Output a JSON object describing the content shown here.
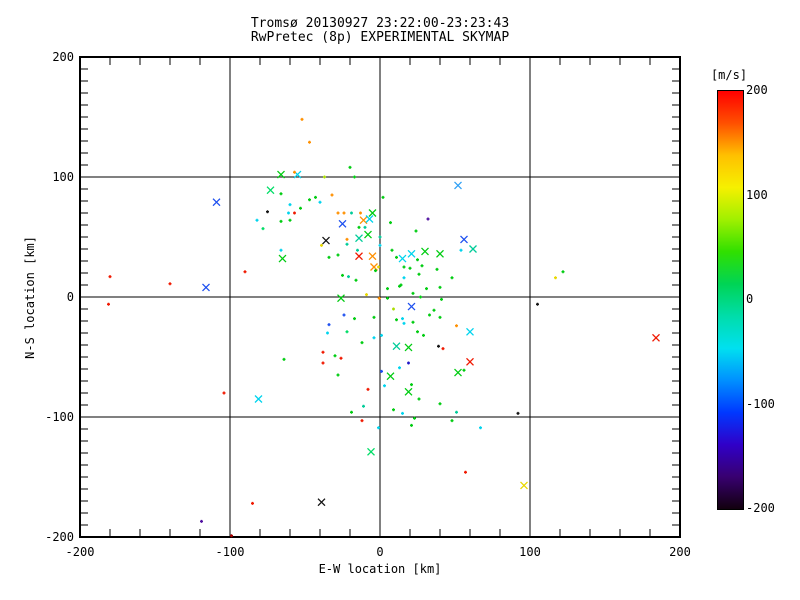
{
  "title": {
    "line1": "Tromsø 20130927 23:22:00-23:23:43",
    "line2": "RwPretec (8p) EXPERIMENTAL SKYMAP"
  },
  "axes": {
    "x": {
      "label": "E-W location [km]",
      "range": [
        -200,
        200
      ],
      "major_ticks": [
        -200,
        -100,
        0,
        100,
        200
      ],
      "minor_step": 20,
      "grid": true
    },
    "y": {
      "label": "N-S location [km]",
      "range": [
        -200,
        200
      ],
      "major_ticks": [
        200,
        100,
        0,
        -100,
        -200
      ],
      "minor_step": 10,
      "grid": true
    }
  },
  "colorbar": {
    "label": "[m/s]",
    "range": [
      -200,
      200
    ],
    "ticks": [
      200,
      100,
      0,
      -100,
      -200
    ],
    "gradient": [
      "#ff0000",
      "#ff5000",
      "#ffc000",
      "#f6f000",
      "#a0f000",
      "#30e000",
      "#00d455",
      "#00ddaa",
      "#00e0f0",
      "#0090ff",
      "#0038ff",
      "#3000c8",
      "#380070",
      "#12000e"
    ]
  },
  "palette": {
    "red": "#f01800",
    "darkred": "#a80000",
    "orange": "#ff9000",
    "yellow": "#e8d800",
    "yellowgreen": "#aadd00",
    "green": "#00cc11",
    "spring": "#00dd66",
    "teal": "#00cc99",
    "cyan": "#00d4ee",
    "lightblue": "#30a0f5",
    "blue": "#1e50f0",
    "darkblue": "#2018c8",
    "indigo": "#5010a0",
    "purple": "#400880",
    "black": "#141414"
  },
  "chart_data": {
    "type": "scatter",
    "title": "Tromsø 20130927 23:22:00-23:23:43 / RwPretec (8p) EXPERIMENTAL SKYMAP",
    "xlabel": "E-W location [km]",
    "ylabel": "N-S location [km]",
    "xlim": [
      -200,
      200
    ],
    "ylim": [
      -200,
      200
    ],
    "color_units": "m/s",
    "color_range": [
      -200,
      200
    ],
    "legend": "none",
    "grid": "major",
    "marker_types": {
      "x": "diagonal-cross",
      "d": "small-dot"
    },
    "points": [
      [
        -52,
        148,
        "orange",
        "d"
      ],
      [
        -47,
        129,
        "orange",
        "d"
      ],
      [
        -66,
        102,
        "green",
        "x"
      ],
      [
        -55,
        102,
        "cyan",
        "x"
      ],
      [
        -57,
        104,
        "orange",
        "d"
      ],
      [
        -37,
        100,
        "yellowgreen",
        "d"
      ],
      [
        -20,
        108,
        "green",
        "d"
      ],
      [
        -17,
        100,
        "green",
        "d"
      ],
      [
        -109,
        79,
        "blue",
        "x"
      ],
      [
        -73,
        89,
        "spring",
        "x"
      ],
      [
        -75,
        71,
        "black",
        "d"
      ],
      [
        -82,
        64,
        "cyan",
        "d"
      ],
      [
        -78,
        57,
        "spring",
        "d"
      ],
      [
        52,
        93,
        "lightblue",
        "x"
      ],
      [
        2,
        83,
        "green",
        "d"
      ],
      [
        -66,
        86,
        "green",
        "d"
      ],
      [
        -60,
        77,
        "cyan",
        "d"
      ],
      [
        -47,
        81,
        "green",
        "d"
      ],
      [
        -43,
        83,
        "green",
        "d"
      ],
      [
        -40,
        79,
        "cyan",
        "d"
      ],
      [
        -32,
        85,
        "orange",
        "d"
      ],
      [
        -61,
        70,
        "cyan",
        "d"
      ],
      [
        -57,
        70,
        "red",
        "d"
      ],
      [
        -53,
        74,
        "green",
        "d"
      ],
      [
        -66,
        63,
        "green",
        "d"
      ],
      [
        -60,
        64,
        "green",
        "d"
      ],
      [
        -28,
        70,
        "orange",
        "d"
      ],
      [
        -24,
        70,
        "orange",
        "d"
      ],
      [
        -19,
        70,
        "teal",
        "d"
      ],
      [
        -25,
        61,
        "blue",
        "x"
      ],
      [
        -11,
        64,
        "orange",
        "x"
      ],
      [
        -7,
        65,
        "cyan",
        "x"
      ],
      [
        -5,
        70,
        "green",
        "x"
      ],
      [
        -13,
        70,
        "orange",
        "d"
      ],
      [
        32,
        65,
        "indigo",
        "d"
      ],
      [
        7,
        62,
        "green",
        "d"
      ],
      [
        -14,
        58,
        "green",
        "d"
      ],
      [
        -10,
        58,
        "teal",
        "d"
      ],
      [
        -8,
        52,
        "green",
        "x"
      ],
      [
        -14,
        49,
        "teal",
        "x"
      ],
      [
        24,
        55,
        "green",
        "d"
      ],
      [
        -36,
        47,
        "black",
        "x"
      ],
      [
        -39,
        43,
        "yellow",
        "d"
      ],
      [
        -22,
        48,
        "orange",
        "d"
      ],
      [
        -22,
        44,
        "teal",
        "d"
      ],
      [
        -66,
        39,
        "cyan",
        "d"
      ],
      [
        -65,
        32,
        "green",
        "x"
      ],
      [
        -34,
        33,
        "green",
        "d"
      ],
      [
        -28,
        35,
        "green",
        "d"
      ],
      [
        -14,
        34,
        "red",
        "x"
      ],
      [
        -5,
        34,
        "orange",
        "x"
      ],
      [
        -4,
        25,
        "orange",
        "x"
      ],
      [
        -15,
        39,
        "teal",
        "d"
      ],
      [
        56,
        48,
        "blue",
        "x"
      ],
      [
        0,
        43,
        "cyan",
        "d"
      ],
      [
        0,
        50,
        "teal",
        "d"
      ],
      [
        21,
        36,
        "cyan",
        "x"
      ],
      [
        30,
        38,
        "green",
        "x"
      ],
      [
        40,
        36,
        "green",
        "x"
      ],
      [
        15,
        32,
        "cyan",
        "x"
      ],
      [
        54,
        39,
        "cyan",
        "d"
      ],
      [
        62,
        40,
        "teal",
        "x"
      ],
      [
        8,
        39,
        "green",
        "d"
      ],
      [
        11,
        33,
        "green",
        "d"
      ],
      [
        -25,
        18,
        "green",
        "d"
      ],
      [
        -21,
        17,
        "teal",
        "d"
      ],
      [
        -16,
        14,
        "green",
        "d"
      ],
      [
        -3,
        22,
        "green",
        "d"
      ],
      [
        25,
        31,
        "green",
        "d"
      ],
      [
        16,
        25,
        "green",
        "d"
      ],
      [
        20,
        24,
        "green",
        "d"
      ],
      [
        28,
        26,
        "green",
        "d"
      ],
      [
        38,
        23,
        "green",
        "d"
      ],
      [
        16,
        16,
        "cyan",
        "d"
      ],
      [
        26,
        19,
        "green",
        "d"
      ],
      [
        48,
        16,
        "green",
        "d"
      ],
      [
        117,
        16,
        "yellow",
        "d"
      ],
      [
        122,
        21,
        "green",
        "d"
      ],
      [
        -180,
        17,
        "red",
        "d"
      ],
      [
        -140,
        11,
        "red",
        "d"
      ],
      [
        -116,
        8,
        "blue",
        "x"
      ],
      [
        -90,
        21,
        "red",
        "d"
      ],
      [
        5,
        7,
        "green",
        "d"
      ],
      [
        13,
        9,
        "green",
        "d"
      ],
      [
        31,
        7,
        "green",
        "d"
      ],
      [
        40,
        8,
        "green",
        "d"
      ],
      [
        -9,
        2,
        "yellow",
        "d"
      ],
      [
        -26,
        -1,
        "green",
        "x"
      ],
      [
        14,
        10,
        "green",
        "d"
      ],
      [
        22,
        3,
        "green",
        "d"
      ],
      [
        27,
        0,
        "green",
        "d"
      ],
      [
        -1,
        25,
        "yellow",
        "d"
      ],
      [
        -181,
        -6,
        "red",
        "d"
      ],
      [
        105,
        -6,
        "black",
        "d"
      ],
      [
        -0.5,
        -1,
        "orange",
        "d"
      ],
      [
        5,
        -1,
        "green",
        "d"
      ],
      [
        41,
        -2,
        "green",
        "d"
      ],
      [
        21,
        -8,
        "blue",
        "x"
      ],
      [
        36,
        -11,
        "green",
        "d"
      ],
      [
        9,
        -10,
        "yellowgreen",
        "d"
      ],
      [
        33,
        -15,
        "green",
        "d"
      ],
      [
        40,
        -17,
        "green",
        "d"
      ],
      [
        15,
        -18,
        "cyan",
        "d"
      ],
      [
        16,
        -22,
        "cyan",
        "d"
      ],
      [
        11,
        -19,
        "green",
        "d"
      ],
      [
        22,
        -21,
        "green",
        "d"
      ],
      [
        51,
        -24,
        "orange",
        "d"
      ],
      [
        -24,
        -15,
        "blue",
        "d"
      ],
      [
        -17,
        -18,
        "green",
        "d"
      ],
      [
        -4,
        -17,
        "green",
        "d"
      ],
      [
        -34,
        -23,
        "blue",
        "d"
      ],
      [
        25,
        -29,
        "green",
        "d"
      ],
      [
        60,
        -29,
        "cyan",
        "x"
      ],
      [
        29,
        -32,
        "green",
        "d"
      ],
      [
        1,
        -32,
        "cyan",
        "d"
      ],
      [
        -35,
        -30,
        "cyan",
        "d"
      ],
      [
        -22,
        -29,
        "spring",
        "d"
      ],
      [
        -12,
        -38,
        "green",
        "d"
      ],
      [
        -4,
        -34,
        "cyan",
        "d"
      ],
      [
        -38,
        -46,
        "red",
        "d"
      ],
      [
        -30,
        -49,
        "green",
        "d"
      ],
      [
        -26,
        -51,
        "red",
        "d"
      ],
      [
        -64,
        -52,
        "green",
        "d"
      ],
      [
        -38,
        -55,
        "red",
        "d"
      ],
      [
        11,
        -41,
        "teal",
        "x"
      ],
      [
        19,
        -42,
        "green",
        "x"
      ],
      [
        39,
        -41,
        "black",
        "d"
      ],
      [
        42,
        -43,
        "red",
        "d"
      ],
      [
        60,
        -54,
        "red",
        "x"
      ],
      [
        19,
        -55,
        "darkblue",
        "d"
      ],
      [
        13,
        -59,
        "cyan",
        "d"
      ],
      [
        52,
        -63,
        "green",
        "x"
      ],
      [
        56,
        -61,
        "green",
        "d"
      ],
      [
        184,
        -34,
        "red",
        "x"
      ],
      [
        -28,
        -65,
        "green",
        "d"
      ],
      [
        1,
        -62,
        "blue",
        "d"
      ],
      [
        7,
        -66,
        "green",
        "x"
      ],
      [
        3,
        -74,
        "cyan",
        "d"
      ],
      [
        21,
        -73,
        "green",
        "d"
      ],
      [
        19,
        -79,
        "green",
        "x"
      ],
      [
        -8,
        -77,
        "red",
        "d"
      ],
      [
        26,
        -85,
        "green",
        "d"
      ],
      [
        40,
        -89,
        "green",
        "d"
      ],
      [
        -104,
        -80,
        "red",
        "d"
      ],
      [
        -81,
        -85,
        "cyan",
        "x"
      ],
      [
        9,
        -94,
        "green",
        "d"
      ],
      [
        15,
        -97,
        "cyan",
        "d"
      ],
      [
        51,
        -96,
        "teal",
        "d"
      ],
      [
        -11,
        -91,
        "teal",
        "d"
      ],
      [
        -19,
        -96,
        "green",
        "d"
      ],
      [
        92,
        -97,
        "black",
        "d"
      ],
      [
        -12,
        -103,
        "red",
        "d"
      ],
      [
        -1,
        -109,
        "cyan",
        "d"
      ],
      [
        23,
        -101,
        "green",
        "d"
      ],
      [
        21,
        -107,
        "green",
        "d"
      ],
      [
        48,
        -103,
        "green",
        "d"
      ],
      [
        67,
        -109,
        "cyan",
        "d"
      ],
      [
        -6,
        -129,
        "spring",
        "x"
      ],
      [
        57,
        -146,
        "red",
        "d"
      ],
      [
        -39,
        -171,
        "black",
        "x"
      ],
      [
        96,
        -157,
        "yellow",
        "x"
      ],
      [
        -85,
        -172,
        "red",
        "d"
      ],
      [
        -119,
        -187,
        "indigo",
        "d"
      ],
      [
        -99,
        -199,
        "darkred",
        "d"
      ]
    ]
  }
}
